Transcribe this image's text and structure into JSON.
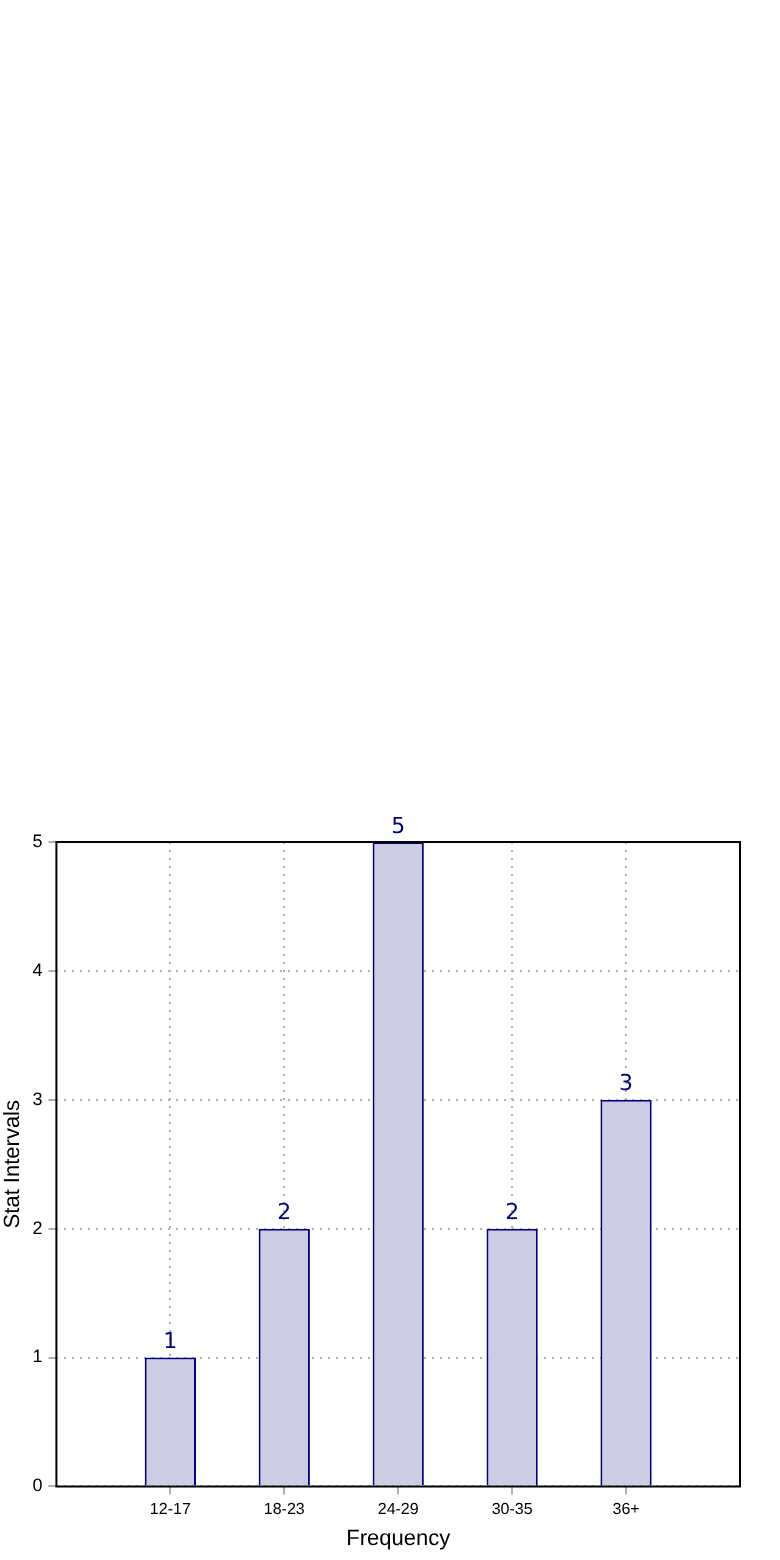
{
  "chart_data": {
    "type": "bar",
    "xlabel": "Frequency",
    "ylabel": "Stat Intervals",
    "categories": [
      "12-17",
      "18-23",
      "24-29",
      "30-35",
      "36+"
    ],
    "values": [
      1,
      2,
      5,
      2,
      3
    ],
    "color": "#ccccE2",
    "ylim": [
      0,
      5
    ],
    "yticks": [
      0,
      1,
      2,
      3,
      4,
      5
    ],
    "grid": true,
    "data_labels": true,
    "legend": false
  }
}
